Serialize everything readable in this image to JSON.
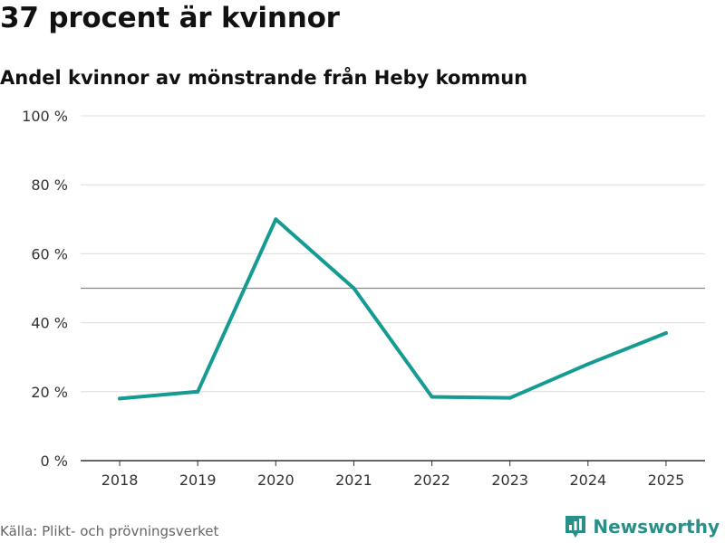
{
  "header": {
    "title": "37 procent är kvinnor",
    "subtitle": "Andel kvinnor av mönstrande från Heby kommun"
  },
  "footer": {
    "source": "Källa: Plikt- och prövningsverket",
    "brand": "Newsworthy"
  },
  "colors": {
    "line": "#169b93",
    "grid": "#dddddd",
    "reference": "#888888",
    "axis": "#333333",
    "brand": "#2a8f88"
  },
  "icons": {
    "brand_logo": "bar-chart-icon"
  },
  "chart_data": {
    "type": "line",
    "title": "37 procent är kvinnor",
    "subtitle": "Andel kvinnor av mönstrande från Heby kommun",
    "x": [
      "2018",
      "2019",
      "2020",
      "2021",
      "2022",
      "2023",
      "2024",
      "2025"
    ],
    "series": [
      {
        "values": [
          18,
          20,
          70,
          50,
          18.5,
          18.2,
          28,
          37
        ]
      }
    ],
    "ylim": [
      0,
      100
    ],
    "yticks": [
      0,
      20,
      40,
      60,
      80,
      100
    ],
    "ytick_labels": [
      "0 %",
      "20 %",
      "40 %",
      "60 %",
      "80 %",
      "100 %"
    ],
    "reference_line": 50,
    "grid": true,
    "xlabel": "",
    "ylabel": ""
  }
}
